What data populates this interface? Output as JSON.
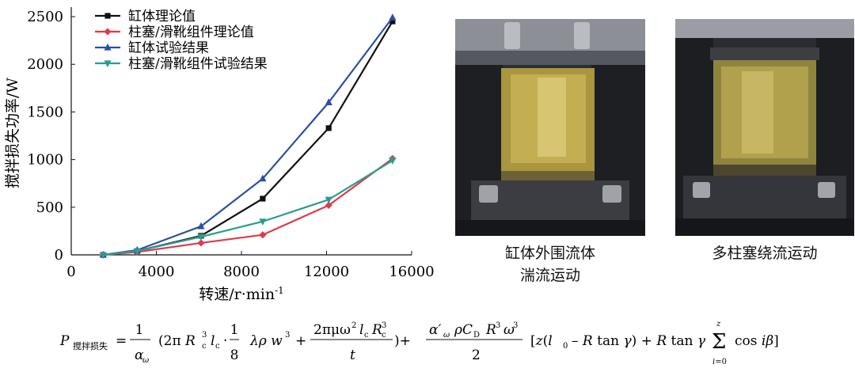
{
  "chart_data": {
    "type": "line",
    "xlabel": "转速/r·min",
    "xlabel_sup": "-1",
    "ylabel": "搅拌损失功率/W",
    "xlim": [
      0,
      16000
    ],
    "ylim": [
      0,
      2600
    ],
    "xticks": [
      "0",
      "4000",
      "8000",
      "12000",
      "16000"
    ],
    "yticks": [
      "0",
      "500",
      "1000",
      "1500",
      "2000",
      "2500"
    ],
    "legend_position": "top-left",
    "grid": false,
    "x": [
      1500,
      3100,
      6100,
      9000,
      12100,
      15100
    ],
    "series": [
      {
        "name": "缸体理论值",
        "color": "#111111",
        "marker": "square",
        "values": [
          0,
          40,
          200,
          590,
          1330,
          2450
        ]
      },
      {
        "name": "柱塞/滑靴组件理论值",
        "color": "#e03a4a",
        "marker": "diamond",
        "values": [
          0,
          30,
          125,
          210,
          520,
          1010
        ]
      },
      {
        "name": "缸体试验结果",
        "color": "#2b4fa2",
        "marker": "triangle-up",
        "values": [
          0,
          50,
          300,
          800,
          1600,
          2490
        ]
      },
      {
        "name": "柱塞/滑靴组件试验结果",
        "color": "#2a9d8f",
        "marker": "triangle-down",
        "values": [
          0,
          40,
          190,
          350,
          580,
          990
        ]
      }
    ]
  },
  "photos": {
    "left_caption_line1": "缸体外围流体",
    "left_caption_line2": "湍流运动",
    "right_caption": "多柱塞绕流运动"
  },
  "formula": {
    "lhs": "P",
    "lhs_subscript": "搅拌损失"
  }
}
